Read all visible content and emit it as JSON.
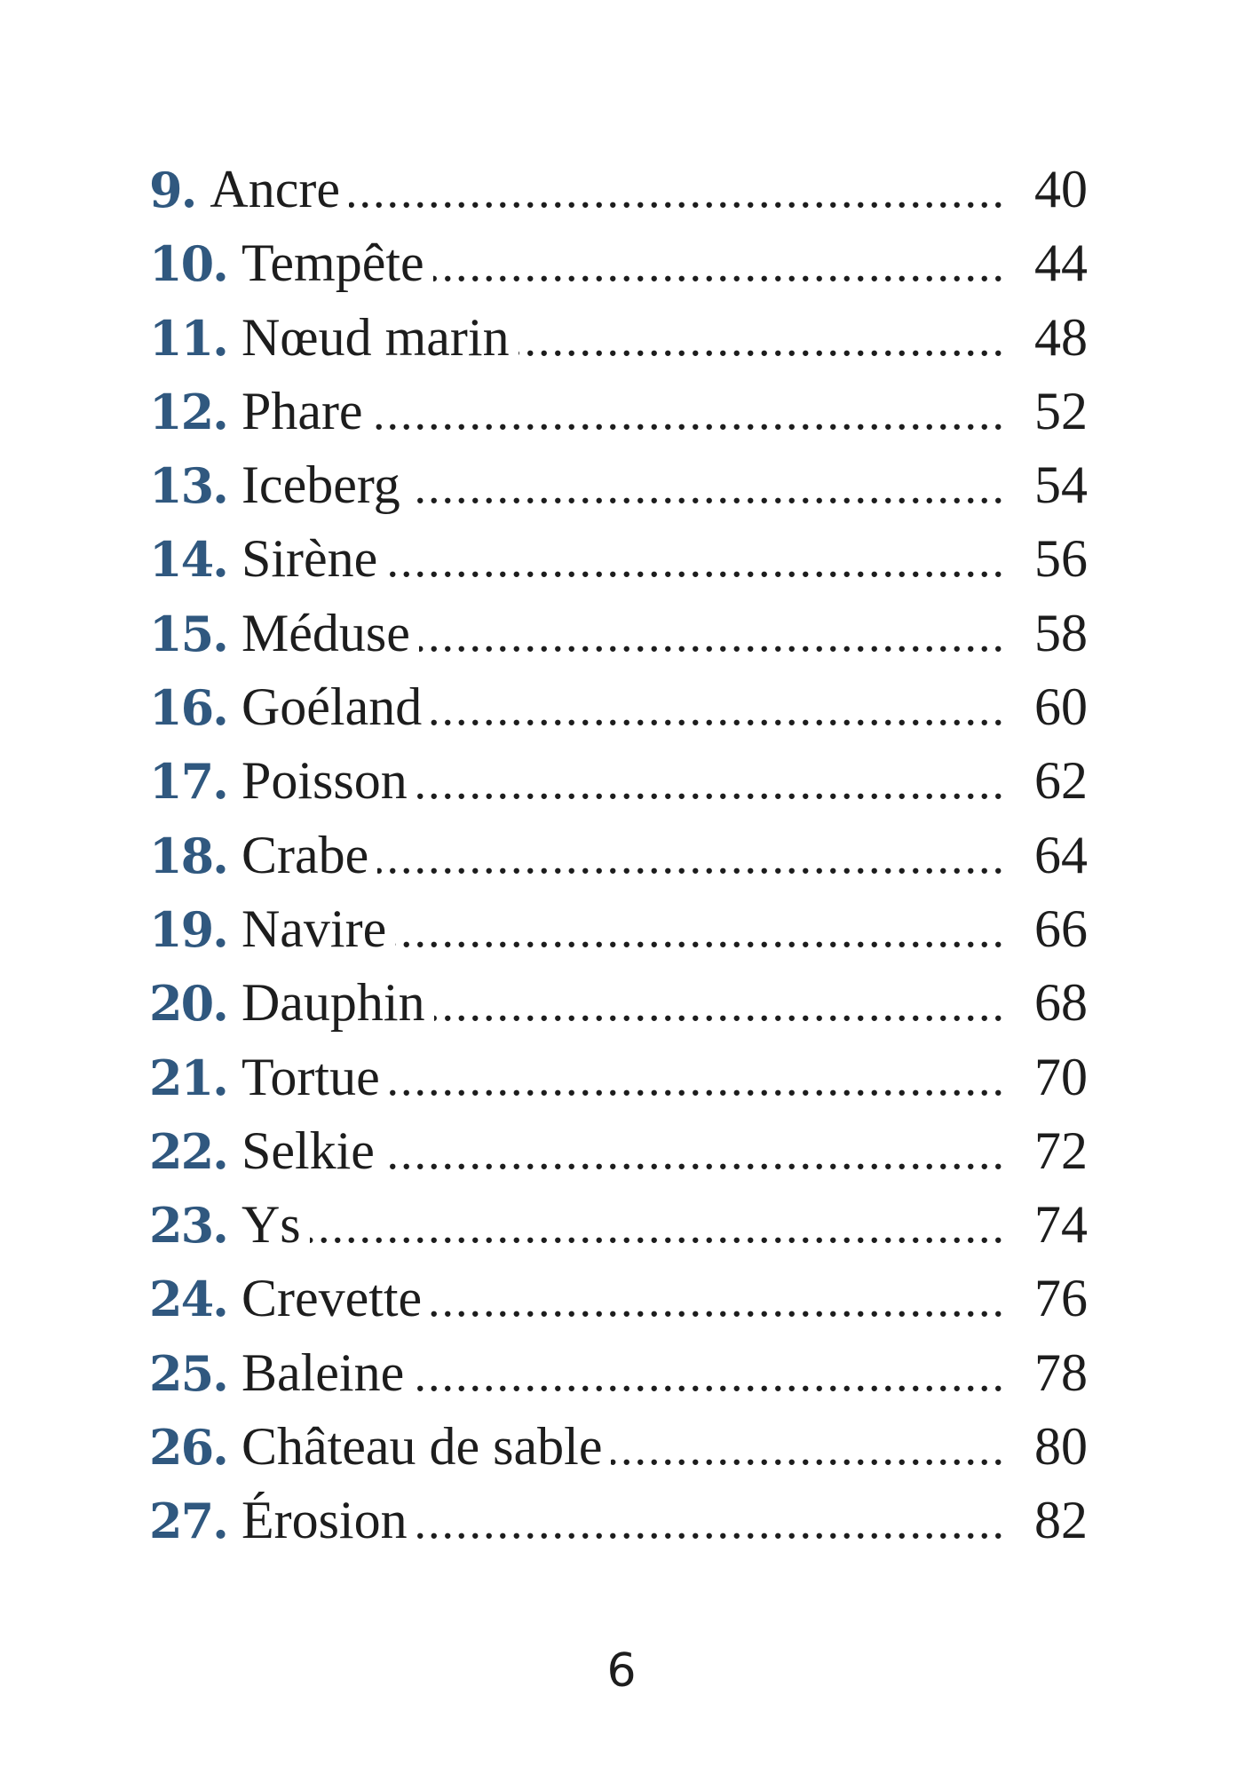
{
  "colors": {
    "accent_blue": "#30587f",
    "text_dark": "#1d1d1d",
    "background": "#ffffff"
  },
  "page": {
    "footer_page_number": "6"
  },
  "toc": {
    "entries": [
      {
        "number": "9.",
        "title": "Ancre",
        "page": "40"
      },
      {
        "number": "10.",
        "title": "Tempête",
        "page": "44"
      },
      {
        "number": "11.",
        "title": "Nœud marin",
        "page": "48"
      },
      {
        "number": "12.",
        "title": "Phare",
        "page": "52"
      },
      {
        "number": "13.",
        "title": "Iceberg",
        "page": "54"
      },
      {
        "number": "14.",
        "title": "Sirène",
        "page": "56"
      },
      {
        "number": "15.",
        "title": "Méduse",
        "page": "58"
      },
      {
        "number": "16.",
        "title": "Goéland",
        "page": "60"
      },
      {
        "number": "17.",
        "title": "Poisson",
        "page": "62"
      },
      {
        "number": "18.",
        "title": "Crabe",
        "page": "64"
      },
      {
        "number": "19.",
        "title": "Navire",
        "page": "66"
      },
      {
        "number": "20.",
        "title": "Dauphin",
        "page": "68"
      },
      {
        "number": "21.",
        "title": "Tortue",
        "page": "70"
      },
      {
        "number": "22.",
        "title": "Selkie",
        "page": "72"
      },
      {
        "number": "23.",
        "title": "Ys",
        "page": "74"
      },
      {
        "number": "24.",
        "title": "Crevette",
        "page": "76"
      },
      {
        "number": "25.",
        "title": "Baleine",
        "page": "78"
      },
      {
        "number": "26.",
        "title": "Château de sable",
        "page": "80"
      },
      {
        "number": "27.",
        "title": "Érosion",
        "page": "82"
      }
    ]
  }
}
